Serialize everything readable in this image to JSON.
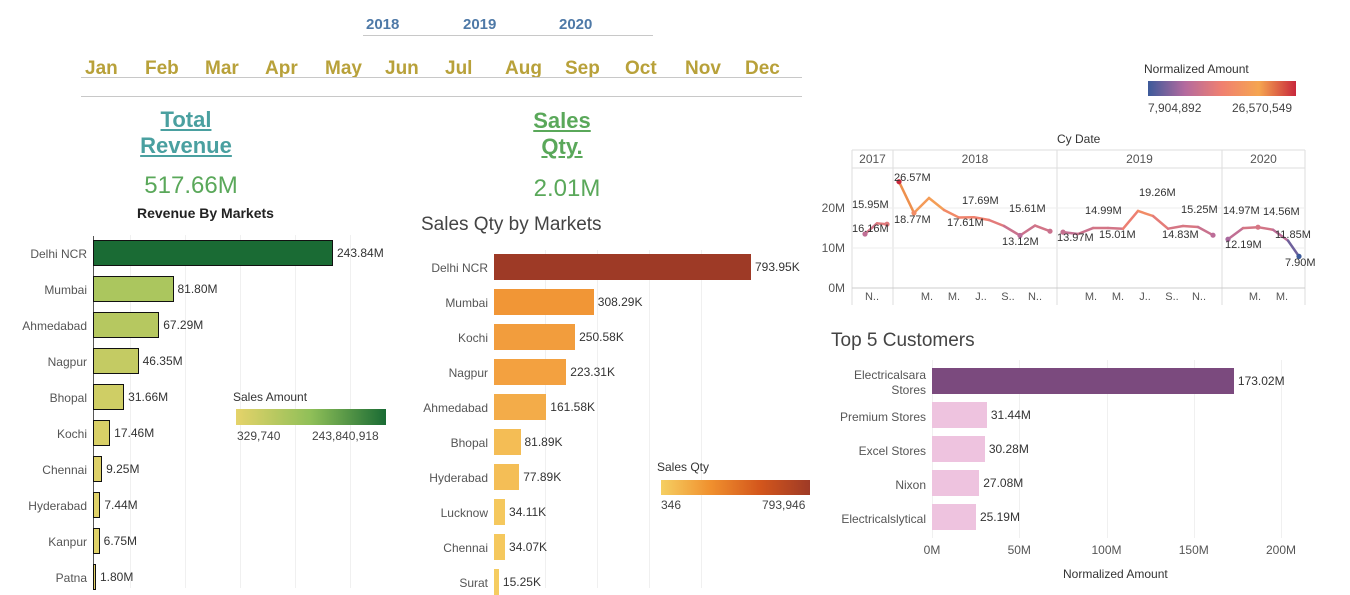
{
  "filters": {
    "years": [
      "2018",
      "2019",
      "2020"
    ],
    "months": [
      "Jan",
      "Feb",
      "Mar",
      "Apr",
      "May",
      "Jun",
      "Jul",
      "Aug",
      "Sep",
      "Oct",
      "Nov",
      "Dec"
    ]
  },
  "kpis": {
    "revenue": {
      "title_line1": "Total",
      "title_line2": "Revenue",
      "value": "517.66M"
    },
    "sales_qty": {
      "title_line1": "Sales",
      "title_line2": "Qty.",
      "value": "2.01M"
    }
  },
  "chart_data": [
    {
      "type": "bar",
      "title": "Revenue By Markets",
      "categories": [
        "Delhi NCR",
        "Mumbai",
        "Ahmedabad",
        "Nagpur",
        "Bhopal",
        "Kochi",
        "Chennai",
        "Hyderabad",
        "Kanpur",
        "Patna"
      ],
      "values": [
        243.84,
        81.8,
        67.29,
        46.35,
        31.66,
        17.46,
        9.25,
        7.44,
        6.75,
        1.8
      ],
      "data_labels": [
        "243.84M",
        "81.80M",
        "67.29M",
        "46.35M",
        "31.66M",
        "17.46M",
        "9.25M",
        "7.44M",
        "6.75M",
        "1.80M"
      ],
      "legend": {
        "title": "Sales Amount",
        "min": "329,740",
        "max": "243,840,918",
        "color_low": "#e5d36a",
        "color_high": "#1a6b34"
      }
    },
    {
      "type": "bar",
      "title": "Sales Qty by Markets",
      "categories": [
        "Delhi NCR",
        "Mumbai",
        "Kochi",
        "Nagpur",
        "Ahmedabad",
        "Bhopal",
        "Hyderabad",
        "Lucknow",
        "Chennai",
        "Surat"
      ],
      "values": [
        793.95,
        308.29,
        250.58,
        223.31,
        161.58,
        81.89,
        77.89,
        34.11,
        34.07,
        15.25
      ],
      "data_labels": [
        "793.95K",
        "308.29K",
        "250.58K",
        "223.31K",
        "161.58K",
        "81.89K",
        "77.89K",
        "34.11K",
        "34.07K",
        "15.25K"
      ],
      "legend": {
        "title": "Sales Qty",
        "min": "346",
        "max": "793,946",
        "color_low": "#f5cf62",
        "color_high": "#9e3a26"
      }
    },
    {
      "type": "line",
      "title": "Cy Date",
      "years": [
        "2017",
        "2018",
        "2019",
        "2020"
      ],
      "x_ticks": [
        "N..",
        "M.",
        "M.",
        "J..",
        "S..",
        "N..",
        "M.",
        "M.",
        "J..",
        "S..",
        "N..",
        "M.",
        "M."
      ],
      "y_ticks": [
        "20M",
        "10M",
        "0M"
      ],
      "ylim": [
        0,
        30
      ],
      "segments": [
        {
          "year": "2017",
          "values": [
            13.5,
            16.16,
            15.95
          ]
        },
        {
          "year": "2018",
          "values": [
            26.57,
            18.77,
            22.5,
            19.5,
            17.61,
            17.69,
            17.0,
            15.5,
            13.12,
            15.61,
            14.2
          ]
        },
        {
          "year": "2019",
          "values": [
            13.97,
            13.5,
            14.99,
            15.01,
            14.8,
            19.26,
            18.0,
            14.83,
            15.5,
            15.25,
            13.2
          ]
        },
        {
          "year": "2020",
          "values": [
            12.19,
            14.97,
            15.2,
            14.56,
            11.85,
            7.9
          ]
        }
      ],
      "data_labels": [
        "15.95M",
        "16.16M",
        "26.57M",
        "18.77M",
        "17.61M",
        "17.69M",
        "13.12M",
        "15.61M",
        "13.97M",
        "14.99M",
        "15.01M",
        "19.26M",
        "14.83M",
        "15.25M",
        "12.19M",
        "14.97M",
        "14.56M",
        "11.85M",
        "7.90M"
      ],
      "legend": {
        "title": "Normalized Amount",
        "min": "7,904,892",
        "max": "26,570,549"
      }
    },
    {
      "type": "bar",
      "title": "Top 5 Customers",
      "categories": [
        "Electricalsara Stores",
        "Premium Stores",
        "Excel Stores",
        "Nixon",
        "Electricalslytical"
      ],
      "category_lines": [
        [
          "Electricalsara",
          "Stores"
        ],
        [
          "Premium Stores"
        ],
        [
          "Excel Stores"
        ],
        [
          "Nixon"
        ],
        [
          "Electricalslytical"
        ]
      ],
      "values": [
        173.02,
        31.44,
        30.28,
        27.08,
        25.19
      ],
      "data_labels": [
        "173.02M",
        "31.44M",
        "30.28M",
        "27.08M",
        "25.19M"
      ],
      "x_ticks": [
        "0M",
        "50M",
        "100M",
        "150M",
        "200M"
      ],
      "xlabel": "Normalized Amount",
      "xlim": [
        0,
        200
      ],
      "colors": {
        "top": "#7b4a7e",
        "rest": "#eec3df"
      }
    }
  ]
}
